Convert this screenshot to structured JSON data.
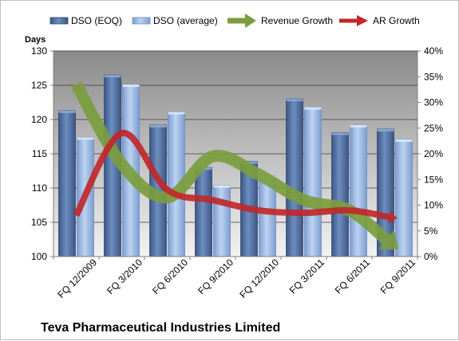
{
  "chart_data": {
    "type": "bar",
    "title": "Teva Pharmaceutical Industries Limited",
    "ylabel": "Days",
    "ylim": [
      100,
      130
    ],
    "y_ticks": [
      100,
      105,
      110,
      115,
      120,
      125,
      130
    ],
    "y2lim": [
      0,
      40
    ],
    "y2_ticks": [
      "0%",
      "5%",
      "10%",
      "15%",
      "20%",
      "25%",
      "30%",
      "35%",
      "40%"
    ],
    "categories": [
      "FQ 12/2009",
      "FQ 3/2010",
      "FQ 6/2010",
      "FQ 9/2010",
      "FQ 12/2010",
      "FQ 3/2011",
      "FQ 6/2011",
      "FQ 9/2011"
    ],
    "series": [
      {
        "name": "DSO (EOQ)",
        "type": "bar",
        "axis": "left",
        "color": "#4f6c9c",
        "values": [
          121.3,
          126.5,
          119.2,
          113.0,
          113.9,
          123.0,
          118.1,
          118.6
        ]
      },
      {
        "name": "DSO (average)",
        "type": "bar",
        "axis": "left",
        "color": "#94b3e0",
        "values": [
          117.4,
          125.1,
          121.1,
          110.4,
          111.8,
          121.8,
          119.2,
          117.1
        ]
      },
      {
        "name": "Revenue Growth",
        "type": "line",
        "axis": "right",
        "unit": "%",
        "color": "#7b9d3e",
        "values": [
          33.5,
          18.0,
          11.5,
          19.5,
          16.0,
          11.0,
          9.0,
          2.0
        ]
      },
      {
        "name": "AR Growth",
        "type": "line",
        "axis": "right",
        "unit": "%",
        "color": "#c0282a",
        "values": [
          8.0,
          24.0,
          13.0,
          11.0,
          9.0,
          8.5,
          9.0,
          7.5
        ]
      }
    ],
    "legend_position": "top",
    "grid": true
  }
}
